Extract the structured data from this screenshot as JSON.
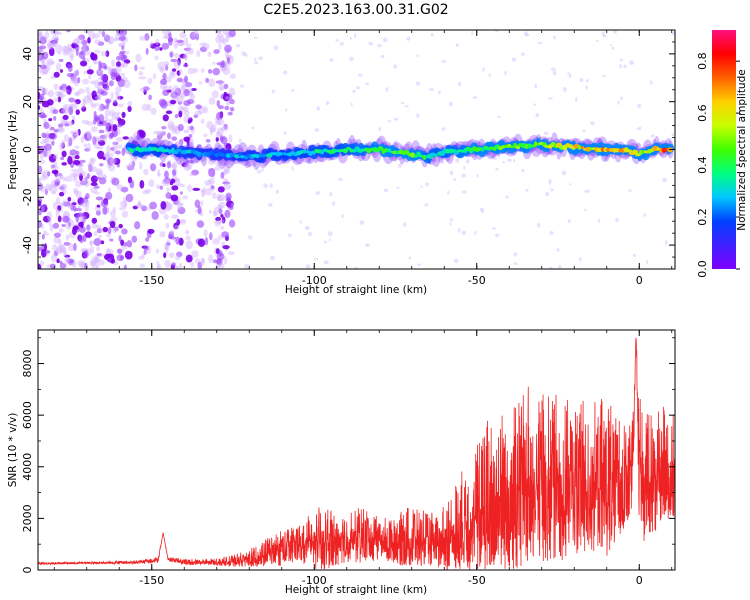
{
  "title": "C2E5.2023.163.00.31.G02",
  "chart_data": [
    {
      "type": "heatmap",
      "xlabel": "Height of straight line (km)",
      "ylabel": "Frequency (Hz)",
      "xlim": [
        -185,
        11
      ],
      "ylim": [
        -50,
        50
      ],
      "xticks": [
        -150,
        -100,
        -50,
        0
      ],
      "yticks": [
        -40,
        -20,
        0,
        20,
        40
      ],
      "grid": false,
      "colormap": [
        "#8000ff",
        "#4020ff",
        "#0040ff",
        "#00c8ff",
        "#00ff80",
        "#40ff00",
        "#c8ff00",
        "#ffd000",
        "#ff6000",
        "#ff0000",
        "#ff1080"
      ],
      "colorbar": {
        "label": "Normalized spectral amplitude",
        "range": [
          0,
          0.92
        ],
        "ticks": [
          0.0,
          0.2,
          0.4,
          0.6,
          0.8
        ]
      },
      "ridge": {
        "x": [
          -157,
          -150,
          -140,
          -130,
          -120,
          -110,
          -100,
          -90,
          -80,
          -70,
          -65,
          -60,
          -50,
          -40,
          -30,
          -20,
          -10,
          -5,
          0,
          5,
          10
        ],
        "frequency": [
          0,
          0,
          -1,
          -2,
          -3,
          -2,
          -1,
          0,
          0,
          -2,
          -3,
          -1,
          0,
          1,
          2,
          1,
          0,
          0,
          -2,
          0,
          0
        ],
        "amplitude": [
          0.38,
          0.38,
          0.3,
          0.28,
          0.3,
          0.34,
          0.38,
          0.4,
          0.45,
          0.5,
          0.42,
          0.4,
          0.46,
          0.5,
          0.58,
          0.65,
          0.72,
          0.8,
          0.55,
          0.7,
          0.9
        ]
      },
      "noise_region_x": [
        -185,
        -125
      ]
    },
    {
      "type": "line",
      "xlabel": "Height of straight line (km)",
      "ylabel": "SNR (10 * v/v)",
      "xlim": [
        -185,
        11
      ],
      "ylim": [
        0,
        9300
      ],
      "xticks": [
        -150,
        -100,
        -50,
        0
      ],
      "yticks": [
        0,
        2000,
        4000,
        6000,
        8000
      ],
      "grid": false,
      "series": [
        {
          "color": "#ee2222",
          "x": [
            -185,
            -175,
            -165,
            -155,
            -148,
            -146.5,
            -145,
            -140,
            -130,
            -125,
            -120,
            -115,
            -110,
            -105,
            -100,
            -95,
            -90,
            -85,
            -80,
            -75,
            -70,
            -65,
            -60,
            -55,
            -50,
            -45,
            -40,
            -35,
            -30,
            -25,
            -20,
            -15,
            -10,
            -5,
            -2,
            -1,
            0,
            2,
            5,
            8,
            11
          ],
          "y": [
            250,
            270,
            280,
            300,
            380,
            1450,
            420,
            300,
            300,
            340,
            420,
            600,
            800,
            1000,
            1100,
            1050,
            1150,
            1250,
            1100,
            1050,
            1200,
            1100,
            1000,
            1700,
            2000,
            2300,
            2800,
            3200,
            3300,
            3200,
            3200,
            3300,
            3300,
            3500,
            4000,
            9200,
            3700,
            3300,
            3700,
            4000,
            3800
          ],
          "envelope": [
            300,
            320,
            330,
            380,
            500,
            1450,
            520,
            420,
            450,
            600,
            800,
            1200,
            1600,
            1800,
            2500,
            2300,
            2200,
            2500,
            2000,
            2100,
            2600,
            2200,
            2500,
            3800,
            5100,
            6400,
            6400,
            7100,
            7300,
            6800,
            6500,
            6600,
            6800,
            5900,
            6500,
            9200,
            6900,
            6100,
            6700,
            6500,
            6200
          ]
        }
      ]
    }
  ]
}
